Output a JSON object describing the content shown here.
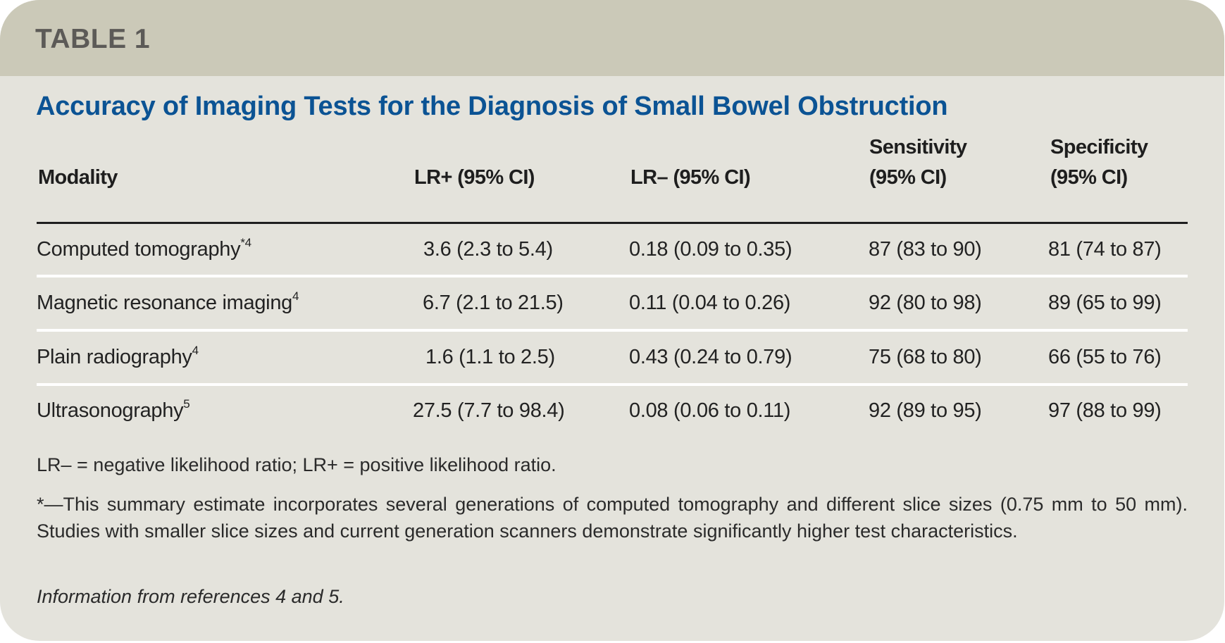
{
  "header": {
    "table_label": "TABLE 1",
    "title": "Accuracy of Imaging Tests for the Diagnosis of Small Bowel Obstruction"
  },
  "colors": {
    "band": "#cbc9b8",
    "panel": "#e4e3dc",
    "title": "#0b5394",
    "label": "#5c5a57"
  },
  "columns": [
    {
      "line1": "",
      "line2": "Modality"
    },
    {
      "line1": "",
      "line2": "LR+ (95% CI)"
    },
    {
      "line1": "",
      "line2": "LR– (95% CI)"
    },
    {
      "line1": "Sensitivity",
      "line2": "(95% CI)"
    },
    {
      "line1": "Specificity",
      "line2": "(95% CI)"
    }
  ],
  "rows": [
    {
      "modality": "Computed tomography",
      "ref": "*4",
      "lr_pos": "3.6 (2.3 to 5.4)",
      "lr_neg": "0.18 (0.09 to 0.35)",
      "sensitivity": "87 (83 to 90)",
      "specificity": "81 (74 to 87)"
    },
    {
      "modality": "Magnetic resonance imaging",
      "ref": "4",
      "lr_pos": "6.7 (2.1 to 21.5)",
      "lr_neg": "0.11 (0.04 to 0.26)",
      "sensitivity": "92 (80 to 98)",
      "specificity": "89 (65 to 99)"
    },
    {
      "modality": "Plain radiography",
      "ref": "4",
      "lr_pos": "1.6 (1.1 to 2.5)",
      "lr_neg": "0.43 (0.24 to 0.79)",
      "sensitivity": "75 (68 to 80)",
      "specificity": "66 (55 to 76)"
    },
    {
      "modality": "Ultrasonography",
      "ref": "5",
      "lr_pos": "27.5 (7.7 to 98.4)",
      "lr_neg": "0.08 (0.06 to 0.11)",
      "sensitivity": "92 (89 to 95)",
      "specificity": "97 (88 to 99)"
    }
  ],
  "footnotes": {
    "abbreviations": "LR– = negative likelihood ratio; LR+ = positive likelihood ratio.",
    "asterisk": "*—This summary estimate incorporates several generations of computed tomography and different slice sizes (0.75 mm to 50 mm). Studies with smaller slice sizes and current generation scanners demonstrate significantly higher test characteristics.",
    "source": "Information from references 4 and 5."
  }
}
